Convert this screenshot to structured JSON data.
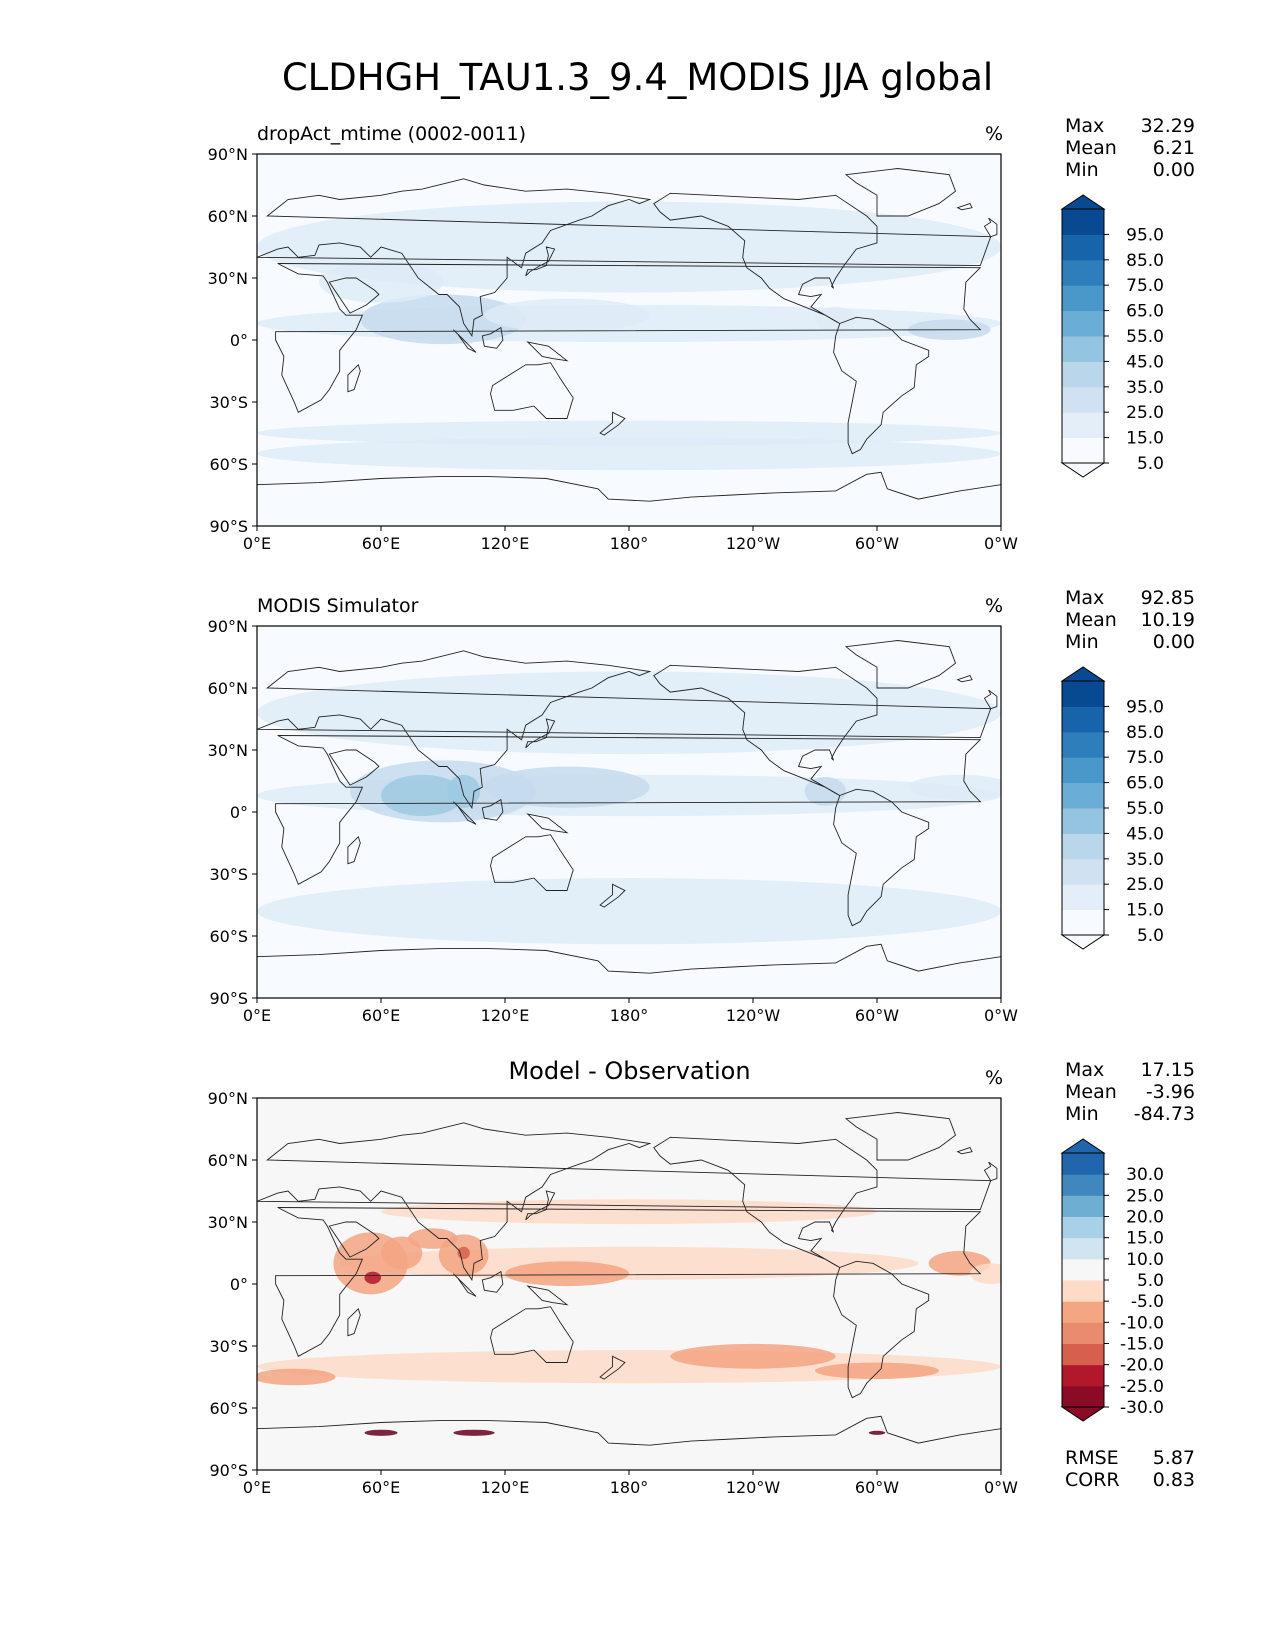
{
  "title": "CLDHGH_TAU1.3_9.4_MODIS JJA global",
  "axes": {
    "lat_ticks": [
      "90°N",
      "60°N",
      "30°N",
      "0°",
      "30°S",
      "60°S",
      "90°S"
    ],
    "lon_ticks": [
      "0°E",
      "60°E",
      "120°E",
      "180°",
      "120°W",
      "60°W",
      "0°W"
    ]
  },
  "colors": {
    "blues": [
      "#f7fbff",
      "#deebf7",
      "#c6dbef",
      "#9ecae1",
      "#6baed6",
      "#4292c6",
      "#2171b5",
      "#08519c",
      "#08306b"
    ],
    "rdbu": [
      "#67001f",
      "#b2182b",
      "#d6604d",
      "#f4a582",
      "#fddbc7",
      "#f7f7f7",
      "#d1e5f0",
      "#92c5de",
      "#4393c3",
      "#2166ac",
      "#053061"
    ]
  },
  "chart_data": [
    {
      "type": "heatmap",
      "title": "dropAct_mtime (0002-0011)",
      "units": "%",
      "stats": {
        "max": "32.29",
        "mean": "6.21",
        "min": "0.00"
      },
      "colorbar_labels": [
        "95.0",
        "85.0",
        "75.0",
        "65.0",
        "55.0",
        "45.0",
        "35.0",
        "25.0",
        "15.0",
        "5.0"
      ],
      "xlim": [
        0,
        360
      ],
      "ylim": [
        -90,
        90
      ]
    },
    {
      "type": "heatmap",
      "title": "MODIS Simulator",
      "units": "%",
      "stats": {
        "max": "92.85",
        "mean": "10.19",
        "min": "0.00"
      },
      "colorbar_labels": [
        "95.0",
        "85.0",
        "75.0",
        "65.0",
        "55.0",
        "45.0",
        "35.0",
        "25.0",
        "15.0",
        "5.0"
      ],
      "xlim": [
        0,
        360
      ],
      "ylim": [
        -90,
        90
      ]
    },
    {
      "type": "heatmap",
      "title": "Model - Observation",
      "units": "%",
      "stats": {
        "max": "17.15",
        "mean": "-3.96",
        "min": "-84.73"
      },
      "colorbar_labels": [
        "30.0",
        "25.0",
        "20.0",
        "15.0",
        "10.0",
        "5.0",
        "-5.0",
        "-10.0",
        "-15.0",
        "-20.0",
        "-25.0",
        "-30.0"
      ],
      "metrics": {
        "rmse": "5.87",
        "corr": "0.83"
      },
      "xlim": [
        0,
        360
      ],
      "ylim": [
        -90,
        90
      ]
    }
  ],
  "labels": {
    "max": "Max",
    "mean": "Mean",
    "min": "Min",
    "rmse": "RMSE",
    "corr": "CORR"
  }
}
